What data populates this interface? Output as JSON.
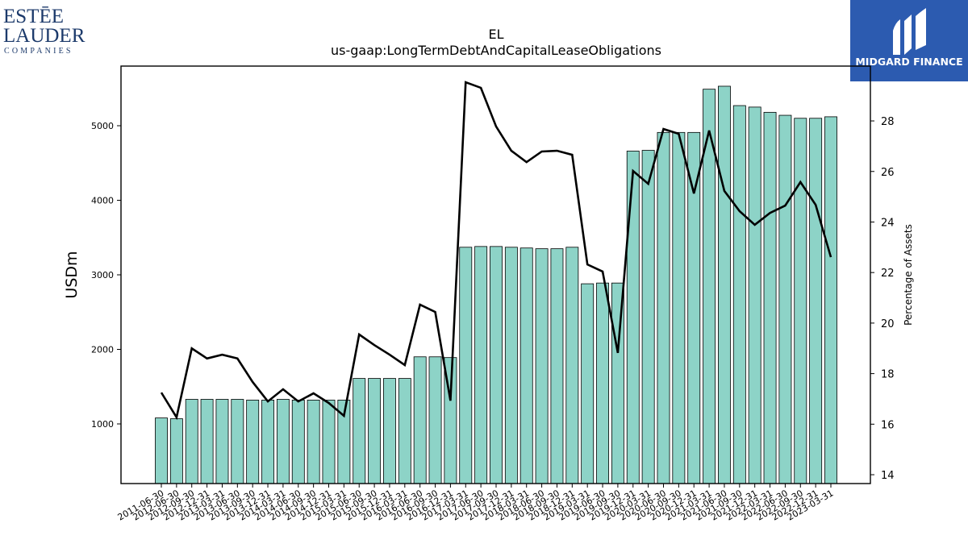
{
  "branding": {
    "left": [
      "ESTĒE",
      "LAUDER",
      "COMPANIES"
    ],
    "right": "MIDGARD FINANCE"
  },
  "chart_data": {
    "type": "bar",
    "title": "EL",
    "subtitle": "us-gaap:LongTermDebtAndCapitalLeaseObligations",
    "ylabel": "USDm",
    "y2label": "Percentage of Assets",
    "categories": [
      "2011-06-30",
      "2012-06-30",
      "2012-09-30",
      "2012-12-31",
      "2013-03-31",
      "2013-06-30",
      "2013-09-30",
      "2013-12-31",
      "2014-03-31",
      "2014-06-30",
      "2014-09-30",
      "2014-12-31",
      "2015-03-31",
      "2015-06-30",
      "2015-09-30",
      "2015-12-31",
      "2016-03-31",
      "2016-06-30",
      "2016-09-30",
      "2016-12-31",
      "2017-03-31",
      "2017-06-30",
      "2017-09-30",
      "2017-12-31",
      "2018-03-31",
      "2018-06-30",
      "2018-09-30",
      "2018-12-31",
      "2019-03-31",
      "2019-06-30",
      "2019-09-30",
      "2019-12-31",
      "2020-03-31",
      "2020-06-30",
      "2020-09-30",
      "2020-12-31",
      "2021-03-31",
      "2021-06-30",
      "2021-09-30",
      "2021-12-31",
      "2022-03-31",
      "2022-06-30",
      "2022-09-30",
      "2022-12-31",
      "2023-03-31"
    ],
    "series": [
      {
        "type": "bar",
        "color": "#8dd3c7",
        "values": [
          1080,
          1070,
          1330,
          1330,
          1330,
          1330,
          1320,
          1320,
          1330,
          1320,
          1320,
          1320,
          1320,
          1610,
          1610,
          1610,
          1610,
          1900,
          1900,
          1890,
          3370,
          3380,
          3380,
          3370,
          3360,
          3350,
          3350,
          3370,
          2880,
          2890,
          2890,
          4660,
          4670,
          4910,
          4910,
          4910,
          5490,
          5530,
          5270,
          5250,
          5180,
          5140,
          5100,
          5100,
          5120
        ]
      },
      {
        "type": "line",
        "color": "#000000",
        "axis": "y2",
        "values": [
          17.25,
          16.27,
          19.0,
          18.6,
          18.75,
          18.6,
          17.67,
          16.9,
          17.38,
          16.9,
          17.22,
          16.84,
          16.33,
          19.55,
          19.13,
          18.75,
          18.34,
          20.73,
          20.44,
          16.93,
          29.53,
          29.31,
          27.78,
          26.82,
          26.37,
          26.79,
          26.82,
          26.66,
          22.32,
          22.04,
          18.82,
          26.02,
          25.51,
          27.68,
          27.49,
          25.13,
          27.62,
          25.23,
          24.43,
          23.89,
          24.36,
          24.65,
          25.58,
          24.68,
          22.61
        ]
      }
    ],
    "ylim": [
      200,
      5800
    ],
    "yticks": [
      1000,
      2000,
      3000,
      4000,
      5000
    ],
    "y2lim": [
      13.65,
      30.17
    ],
    "y2ticks": [
      14,
      16,
      18,
      20,
      22,
      24,
      26,
      28
    ]
  }
}
